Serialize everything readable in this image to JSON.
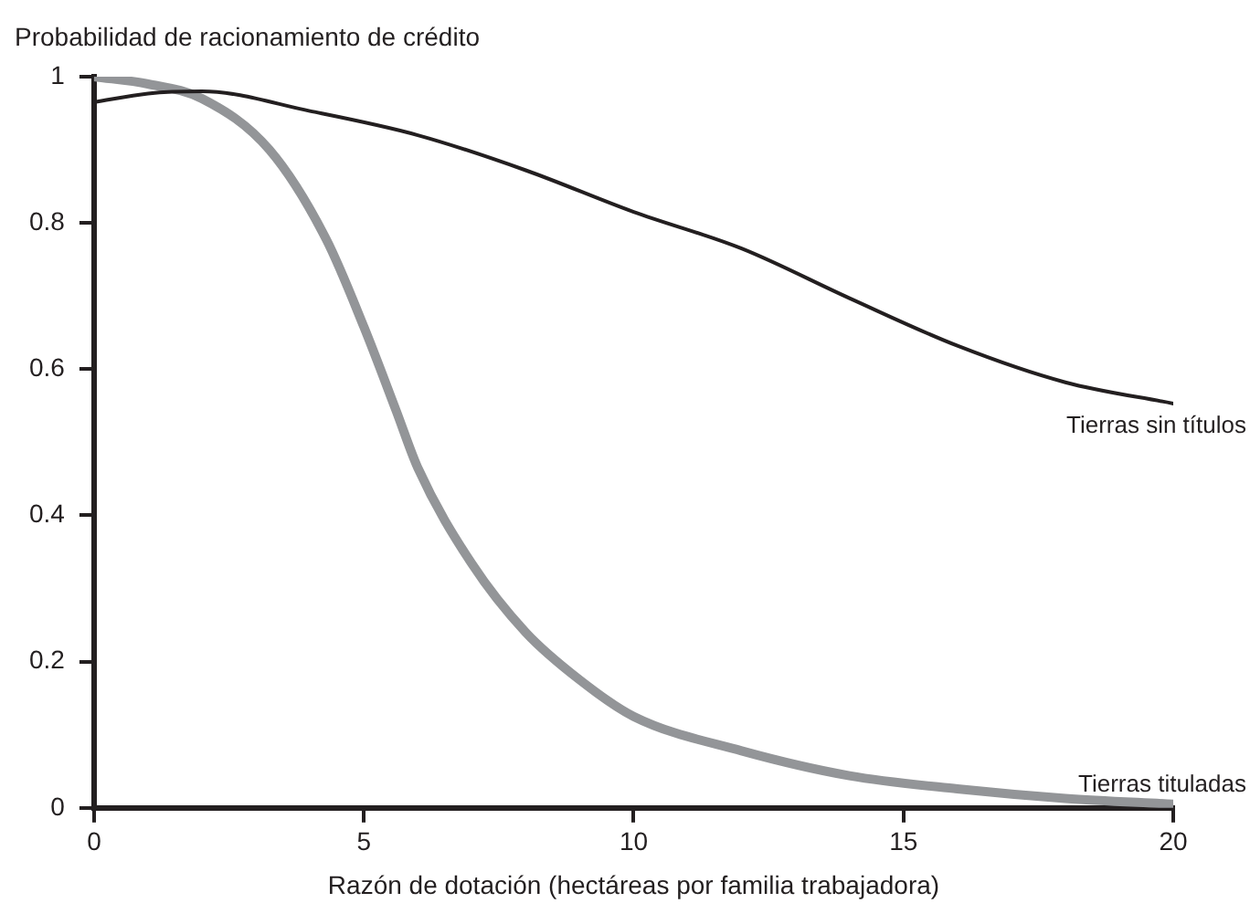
{
  "chart_data": {
    "type": "line",
    "ylabel": "Probabilidad de racionamiento de crédito",
    "xlabel": "Razón de dotación (hectáreas por familia trabajadora)",
    "xlim": [
      0,
      20
    ],
    "xticks": [
      0,
      5,
      10,
      15,
      20
    ],
    "ylim": [
      0,
      1
    ],
    "yticks": [
      0,
      0.2,
      0.4,
      0.6,
      0.8,
      1
    ],
    "grid": false,
    "legend": false,
    "marker": "none",
    "line_style": "solid",
    "series": [
      {
        "name": "Tierras sin títulos",
        "color": "#231f20",
        "x": [
          0,
          1,
          2,
          4,
          6,
          8,
          10,
          12,
          14,
          16,
          18,
          20
        ],
        "values": [
          0.965,
          0.977,
          0.98,
          0.953,
          0.92,
          0.872,
          0.815,
          0.765,
          0.697,
          0.632,
          0.582,
          0.553
        ]
      },
      {
        "name": "Tierras tituladas",
        "color": "#939598",
        "x": [
          0,
          1,
          2,
          3.25,
          4.3,
          5,
          5.6,
          6,
          7,
          8,
          9,
          10,
          12,
          14,
          16,
          18,
          20
        ],
        "values": [
          1,
          0.99,
          0.97,
          0.9,
          0.778,
          0.658,
          0.543,
          0.465,
          0.334,
          0.24,
          0.175,
          0.125,
          0.078,
          0.044,
          0.026,
          0.013,
          0.005
        ]
      }
    ]
  }
}
